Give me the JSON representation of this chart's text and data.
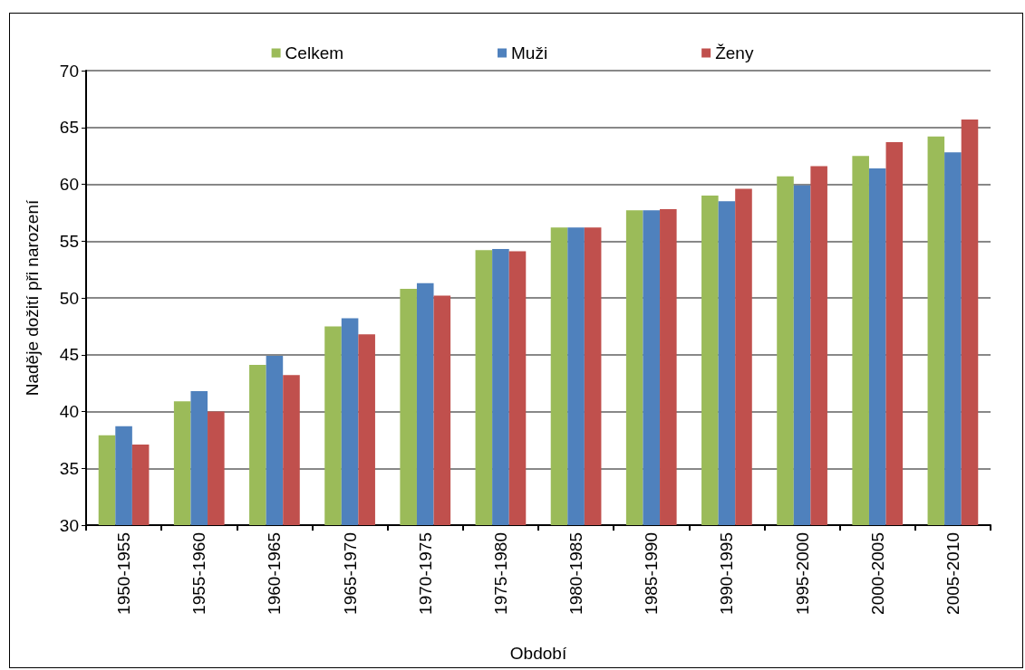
{
  "chart_data": {
    "type": "bar",
    "xlabel": "Období",
    "ylabel": "Naděje dožití při narození",
    "categories": [
      "1950-1955",
      "1955-1960",
      "1960-1965",
      "1965-1970",
      "1970-1975",
      "1975-1980",
      "1980-1985",
      "1985-1990",
      "1990-1995",
      "1995-2000",
      "2000-2005",
      "2005-2010"
    ],
    "series": [
      {
        "name": "Celkem",
        "color": "#9bbb59",
        "values": [
          37.9,
          40.9,
          44.1,
          47.5,
          50.8,
          54.2,
          56.2,
          57.7,
          59.0,
          60.7,
          62.5,
          64.2
        ]
      },
      {
        "name": "Muži",
        "color": "#4f81bd",
        "values": [
          38.7,
          41.8,
          44.9,
          48.2,
          51.3,
          54.3,
          56.2,
          57.7,
          58.5,
          59.9,
          61.4,
          62.8
        ]
      },
      {
        "name": "Ženy",
        "color": "#c0504d",
        "values": [
          37.1,
          40.0,
          43.2,
          46.8,
          50.2,
          54.1,
          56.2,
          57.8,
          59.6,
          61.6,
          63.7,
          65.7
        ]
      }
    ],
    "ylim": [
      30,
      70
    ],
    "yticks": [
      30,
      35,
      40,
      45,
      50,
      55,
      60,
      65,
      70
    ],
    "grid": "y",
    "legend": "top"
  }
}
